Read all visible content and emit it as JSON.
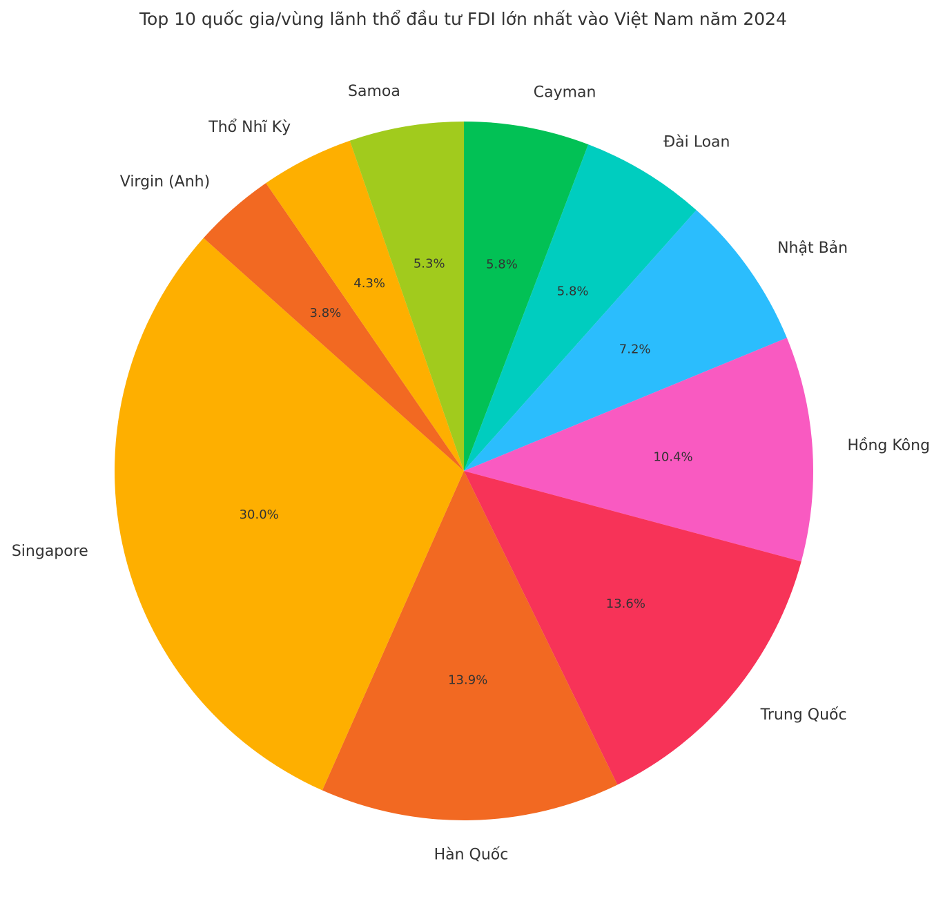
{
  "chart_data": {
    "type": "pie",
    "title": "Top 10 quốc gia/vùng lãnh thổ đầu tư FDI lớn nhất vào Việt Nam năm 2024",
    "start_angle_deg": 90,
    "direction": "clockwise",
    "slices": [
      {
        "label": "Cayman",
        "value": 5.8,
        "pct_label": "5.8%",
        "color": "#02c155"
      },
      {
        "label": "Đài Loan",
        "value": 5.8,
        "pct_label": "5.8%",
        "color": "#00cdbf"
      },
      {
        "label": "Nhật Bản",
        "value": 7.2,
        "pct_label": "7.2%",
        "color": "#2bbdfd"
      },
      {
        "label": "Hồng Kông",
        "value": 10.4,
        "pct_label": "10.4%",
        "color": "#f95ac1"
      },
      {
        "label": "Trung Quốc",
        "value": 13.6,
        "pct_label": "13.6%",
        "color": "#f73358"
      },
      {
        "label": "Hàn Quốc",
        "value": 13.9,
        "pct_label": "13.9%",
        "color": "#f26922"
      },
      {
        "label": "Singapore",
        "value": 30.0,
        "pct_label": "30.0%",
        "color": "#feaf00"
      },
      {
        "label": "Virgin (Anh)",
        "value": 3.8,
        "pct_label": "3.8%",
        "color": "#f26922"
      },
      {
        "label": "Thổ Nhĩ Kỳ",
        "value": 4.3,
        "pct_label": "4.3%",
        "color": "#feaf00"
      },
      {
        "label": "Samoa",
        "value": 5.3,
        "pct_label": "5.3%",
        "color": "#a1cb1d"
      }
    ]
  }
}
